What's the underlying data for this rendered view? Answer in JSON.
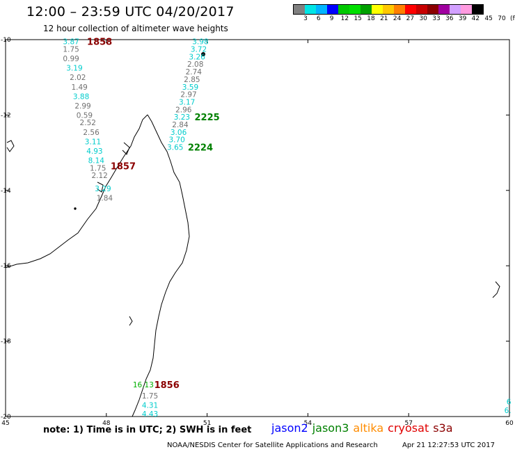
{
  "header": {
    "title": "12:00 – 23:59 UTC 04/20/2017",
    "subtitle": "12 hour collection of altimeter wave heights"
  },
  "legend": {
    "swatches": [
      "#808080",
      "#00e5e5",
      "#00b4ff",
      "#0000ff",
      "#00c800",
      "#00e000",
      "#00a000",
      "#ffff00",
      "#ffc800",
      "#ff8000",
      "#ff0000",
      "#c80000",
      "#8b0000",
      "#a000a0",
      "#d2a0ff",
      "#ff9be0",
      "#000000"
    ],
    "labels": [
      "3",
      "6",
      "9",
      "12",
      "15",
      "18",
      "21",
      "24",
      "27",
      "30",
      "33",
      "36",
      "39",
      "42",
      "45",
      "70",
      "(ft)"
    ]
  },
  "map": {
    "lon_ticks": [
      {
        "label": "45",
        "value": 45
      },
      {
        "label": "48",
        "value": 48
      },
      {
        "label": "51",
        "value": 51
      },
      {
        "label": "54",
        "value": 54
      },
      {
        "label": "57",
        "value": 57
      },
      {
        "label": "60",
        "value": 60
      }
    ],
    "lat_ticks": [
      {
        "label": "-10",
        "value": -10
      },
      {
        "label": "-12",
        "value": -12
      },
      {
        "label": "-14",
        "value": -14
      },
      {
        "label": "-16",
        "value": -16
      },
      {
        "label": "-18",
        "value": -18
      },
      {
        "label": "-20",
        "value": -20
      }
    ],
    "passes": [
      {
        "label": "1858",
        "color": "#8b0000",
        "lon": 47.8,
        "lat": -10.05,
        "observations": [
          {
            "text": "3.87",
            "color": "#00cccc",
            "lon": 46.95,
            "lat": -10.05
          },
          {
            "text": "1.75",
            "color": "#707070",
            "lon": 46.95,
            "lat": -10.25
          },
          {
            "text": "0.99",
            "color": "#707070",
            "lon": 46.95,
            "lat": -10.5
          },
          {
            "text": "3.19",
            "color": "#00cccc",
            "lon": 47.05,
            "lat": -10.75
          },
          {
            "text": "2.02",
            "color": "#707070",
            "lon": 47.15,
            "lat": -11.0
          },
          {
            "text": "1.49",
            "color": "#707070",
            "lon": 47.2,
            "lat": -11.25
          },
          {
            "text": "3.88",
            "color": "#00cccc",
            "lon": 47.25,
            "lat": -11.5
          },
          {
            "text": "2.99",
            "color": "#707070",
            "lon": 47.3,
            "lat": -11.75
          },
          {
            "text": "0.59",
            "color": "#707070",
            "lon": 47.35,
            "lat": -12.0
          },
          {
            "text": "2.52",
            "color": "#707070",
            "lon": 47.45,
            "lat": -12.2
          },
          {
            "text": "2.56",
            "color": "#707070",
            "lon": 47.55,
            "lat": -12.45
          },
          {
            "text": "3.11",
            "color": "#00cccc",
            "lon": 47.6,
            "lat": -12.7
          },
          {
            "text": "4.93",
            "color": "#00cccc",
            "lon": 47.65,
            "lat": -12.95
          },
          {
            "text": "8.14",
            "color": "#00cccc",
            "lon": 47.7,
            "lat": -13.2
          },
          {
            "text": "1.75",
            "color": "#707070",
            "lon": 47.75,
            "lat": -13.4
          },
          {
            "text": "2.12",
            "color": "#707070",
            "lon": 47.8,
            "lat": -13.6
          }
        ]
      },
      {
        "label": "1857",
        "color": "#8b0000",
        "lon": 48.5,
        "lat": -13.35,
        "observations": [
          {
            "text": "3.29",
            "color": "#00cccc",
            "lon": 47.9,
            "lat": -13.95
          },
          {
            "text": "1.84",
            "color": "#707070",
            "lon": 47.95,
            "lat": -14.2
          }
        ]
      },
      {
        "label": "2225",
        "color": "#008000",
        "lon": 51.0,
        "lat": -12.05,
        "observations": [
          {
            "text": "3.98",
            "color": "#00cccc",
            "lon": 50.8,
            "lat": -10.05
          },
          {
            "text": "3.72",
            "color": "#00cccc",
            "lon": 50.75,
            "lat": -10.25
          },
          {
            "text": "3.26",
            "color": "#00cccc",
            "lon": 50.7,
            "lat": -10.45
          },
          {
            "text": "2.08",
            "color": "#707070",
            "lon": 50.65,
            "lat": -10.65
          },
          {
            "text": "2.74",
            "color": "#707070",
            "lon": 50.6,
            "lat": -10.85
          },
          {
            "text": "2.85",
            "color": "#707070",
            "lon": 50.55,
            "lat": -11.05
          },
          {
            "text": "3.59",
            "color": "#00cccc",
            "lon": 50.5,
            "lat": -11.25
          },
          {
            "text": "2.97",
            "color": "#707070",
            "lon": 50.45,
            "lat": -11.45
          },
          {
            "text": "3.17",
            "color": "#00cccc",
            "lon": 50.4,
            "lat": -11.65
          },
          {
            "text": "2.96",
            "color": "#707070",
            "lon": 50.3,
            "lat": -11.85
          },
          {
            "text": "3.23",
            "color": "#00cccc",
            "lon": 50.25,
            "lat": -12.05
          }
        ]
      },
      {
        "label": "2224",
        "color": "#008000",
        "lon": 50.8,
        "lat": -12.85,
        "observations": [
          {
            "text": "2.84",
            "color": "#707070",
            "lon": 50.2,
            "lat": -12.25
          },
          {
            "text": "3.06",
            "color": "#00cccc",
            "lon": 50.15,
            "lat": -12.45
          },
          {
            "text": "3.70",
            "color": "#00cccc",
            "lon": 50.1,
            "lat": -12.65
          },
          {
            "text": "3.65",
            "color": "#00cccc",
            "lon": 50.05,
            "lat": -12.85
          }
        ]
      },
      {
        "label": "1856",
        "color": "#8b0000",
        "lon": 49.8,
        "lat": -19.15,
        "observations": [
          {
            "text": "16.13",
            "color": "#00b000",
            "lon": 49.1,
            "lat": -19.15
          },
          {
            "text": "1.75",
            "color": "#707070",
            "lon": 49.3,
            "lat": -19.45
          },
          {
            "text": "4.31",
            "color": "#00cccc",
            "lon": 49.3,
            "lat": -19.7
          },
          {
            "text": "4.43",
            "color": "#00cccc",
            "lon": 49.3,
            "lat": -19.93
          }
        ]
      },
      {
        "label": "",
        "color": "#00cccc",
        "lon": 60.0,
        "lat": -19.5,
        "observations": [
          {
            "text": "6",
            "color": "#00cccc",
            "lon": 59.98,
            "lat": -19.6
          },
          {
            "text": "6.",
            "color": "#00cccc",
            "lon": 59.95,
            "lat": -19.83
          }
        ]
      }
    ]
  },
  "footer": {
    "note": "note: 1) Time is in UTC; 2) SWH is in feet",
    "satellites": [
      {
        "name": "jason2",
        "color": "#0000ff"
      },
      {
        "name": "jason3",
        "color": "#008000"
      },
      {
        "name": "altika",
        "color": "#ff8c00"
      },
      {
        "name": "cryosat",
        "color": "#e00000"
      },
      {
        "name": "s3a",
        "color": "#8b0000"
      }
    ],
    "credit": "NOAA/NESDIS Center for Satellite Applications and Research",
    "timestamp": "Apr 21 12:27:53 UTC 2017"
  }
}
